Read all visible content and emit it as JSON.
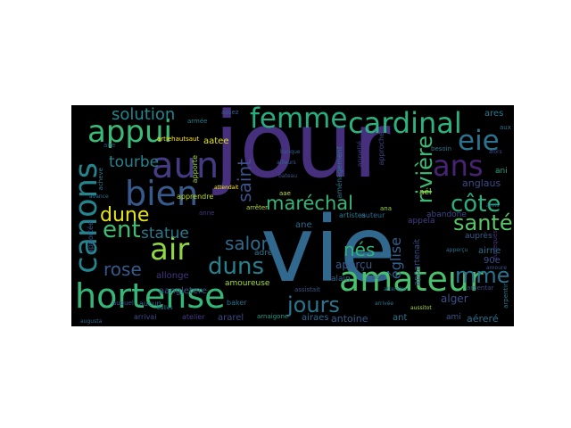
{
  "words": [
    {
      "text": "jour",
      "color": "#46307e"
    },
    {
      "text": "vie",
      "color": "#31688e"
    },
    {
      "text": "hortense",
      "color": "#35b779"
    },
    {
      "text": "amateur",
      "color": "#4ac16d"
    },
    {
      "text": "cardinal",
      "color": "#2db27d"
    },
    {
      "text": "femme",
      "color": "#27ad81"
    },
    {
      "text": "appui",
      "color": "#3aba76"
    },
    {
      "text": "aun",
      "color": "#443b84"
    },
    {
      "text": "bien",
      "color": "#38598c"
    },
    {
      "text": "air",
      "color": "#8fd744"
    },
    {
      "text": "ent",
      "color": "#40bd72"
    },
    {
      "text": "dune",
      "color": "#e5e419"
    },
    {
      "text": "canons",
      "color": "#25858e"
    },
    {
      "text": "ans",
      "color": "#482374"
    },
    {
      "text": "eie",
      "color": "#2c728e"
    },
    {
      "text": "côte",
      "color": "#29af7f"
    },
    {
      "text": "maréchal",
      "color": "#35b779"
    },
    {
      "text": "rivière",
      "color": "#3bbb75"
    },
    {
      "text": "duns",
      "color": "#26818e"
    },
    {
      "text": "jours",
      "color": "#2a768e"
    },
    {
      "text": "salon",
      "color": "#2f6b8e"
    },
    {
      "text": "solution",
      "color": "#24868e"
    },
    {
      "text": "tourbe",
      "color": "#25838e"
    },
    {
      "text": "statue",
      "color": "#2a788e"
    },
    {
      "text": "rose",
      "color": "#375a8c"
    },
    {
      "text": "santé",
      "color": "#56c667"
    },
    {
      "text": "mme",
      "color": "#2c718e"
    },
    {
      "text": "nés",
      "color": "#2fb47c"
    },
    {
      "text": "saint",
      "color": "#3b528b"
    },
    {
      "text": "église",
      "color": "#34608d"
    },
    {
      "text": "anglaus",
      "color": "#3e4989"
    },
    {
      "text": "aperçu",
      "color": "#375b8d"
    },
    {
      "text": "antoine",
      "color": "#365c8d"
    },
    {
      "text": "abandone",
      "color": "#3f4889"
    },
    {
      "text": "appartenait",
      "color": "#3b518b"
    },
    {
      "text": "allonge",
      "color": "#453581"
    },
    {
      "text": "alger",
      "color": "#3c4f8a"
    },
    {
      "text": "aangletere",
      "color": "#38598c"
    },
    {
      "text": "amoureuse",
      "color": "#a5db36"
    },
    {
      "text": "aéreré",
      "color": "#2d708e"
    },
    {
      "text": "ararel",
      "color": "#3f4788"
    },
    {
      "text": "airaes",
      "color": "#31668e"
    },
    {
      "text": "apprendre",
      "color": "#bddf26"
    },
    {
      "text": "aatee",
      "color": "#e3e418"
    },
    {
      "text": "artiehautsaut",
      "color": "#fde725"
    },
    {
      "text": "ares",
      "color": "#2a788e"
    },
    {
      "text": "ani",
      "color": "#1fa188"
    },
    {
      "text": "airne",
      "color": "#2c718e"
    },
    {
      "text": "90e",
      "color": "#3c4f8a"
    },
    {
      "text": "aae",
      "color": "#c2df23"
    },
    {
      "text": "ane",
      "color": "#2e6e8e"
    },
    {
      "text": "adre",
      "color": "#2a788e"
    },
    {
      "text": "appela",
      "color": "#433e85"
    },
    {
      "text": "aél",
      "color": "#b5de2b"
    },
    {
      "text": "arrêter",
      "color": "#b8de29"
    },
    {
      "text": "artistes",
      "color": "#2a788e"
    },
    {
      "text": "auteur",
      "color": "#2f6c8e"
    },
    {
      "text": "alain",
      "color": "#31668e"
    },
    {
      "text": "besoin",
      "color": "#2a788e"
    },
    {
      "text": "ana",
      "color": "#9bd93c"
    },
    {
      "text": "ami",
      "color": "#38588c"
    },
    {
      "text": "ant",
      "color": "#2a768e"
    },
    {
      "text": "aussitot",
      "color": "#a8db34"
    },
    {
      "text": "atelier",
      "color": "#443a83"
    },
    {
      "text": "arrivai",
      "color": "#3e4a89"
    },
    {
      "text": "arnaigone",
      "color": "#1f9e89"
    },
    {
      "text": "baker",
      "color": "#2e6f8e"
    },
    {
      "text": "appellé",
      "color": "#424086"
    },
    {
      "text": "approche",
      "color": "#3f4788"
    },
    {
      "text": "apporte",
      "color": "#a2da37"
    },
    {
      "text": "aménagement",
      "color": "#2a788e"
    },
    {
      "text": "auprès",
      "color": "#355e8d"
    },
    {
      "text": "arpentar",
      "color": "#3e4c8a"
    },
    {
      "text": "aux",
      "color": "#2d718e"
    },
    {
      "text": "aunequés",
      "color": "#46337f"
    },
    {
      "text": "apportée",
      "color": "#38598c"
    },
    {
      "text": "arpentir",
      "color": "#2a788e"
    },
    {
      "text": "aucun",
      "color": "#2c718e"
    },
    {
      "text": "auquel",
      "color": "#3b528b"
    },
    {
      "text": "amoure",
      "color": "#3c508b"
    },
    {
      "text": "assistait",
      "color": "#3a548c"
    },
    {
      "text": "attendre",
      "color": "#2e6d8e"
    },
    {
      "text": "anne",
      "color": "#463480"
    },
    {
      "text": "aire",
      "color": "#3d4e8a"
    },
    {
      "text": "acheve",
      "color": "#2a788e"
    },
    {
      "text": "augusta",
      "color": "#31688e"
    },
    {
      "text": "bateau",
      "color": "#3a548c"
    },
    {
      "text": "banque",
      "color": "#345f8d"
    },
    {
      "text": "attendait",
      "color": "#fde725"
    },
    {
      "text": "arrivée",
      "color": "#2a768e"
    },
    {
      "text": "armée",
      "color": "#287c8e"
    },
    {
      "text": "assez",
      "color": "#365d8d"
    },
    {
      "text": "avance",
      "color": "#2d708e"
    },
    {
      "text": "alors",
      "color": "#3d4d8a"
    },
    {
      "text": "apperçu",
      "color": "#2c728e"
    },
    {
      "text": "bois",
      "color": "#3b528b"
    },
    {
      "text": "amis",
      "color": "#2e6e8e"
    },
    {
      "text": "ailleurs",
      "color": "#35608d"
    },
    {
      "text": "balles",
      "color": "#2a768e"
    }
  ]
}
